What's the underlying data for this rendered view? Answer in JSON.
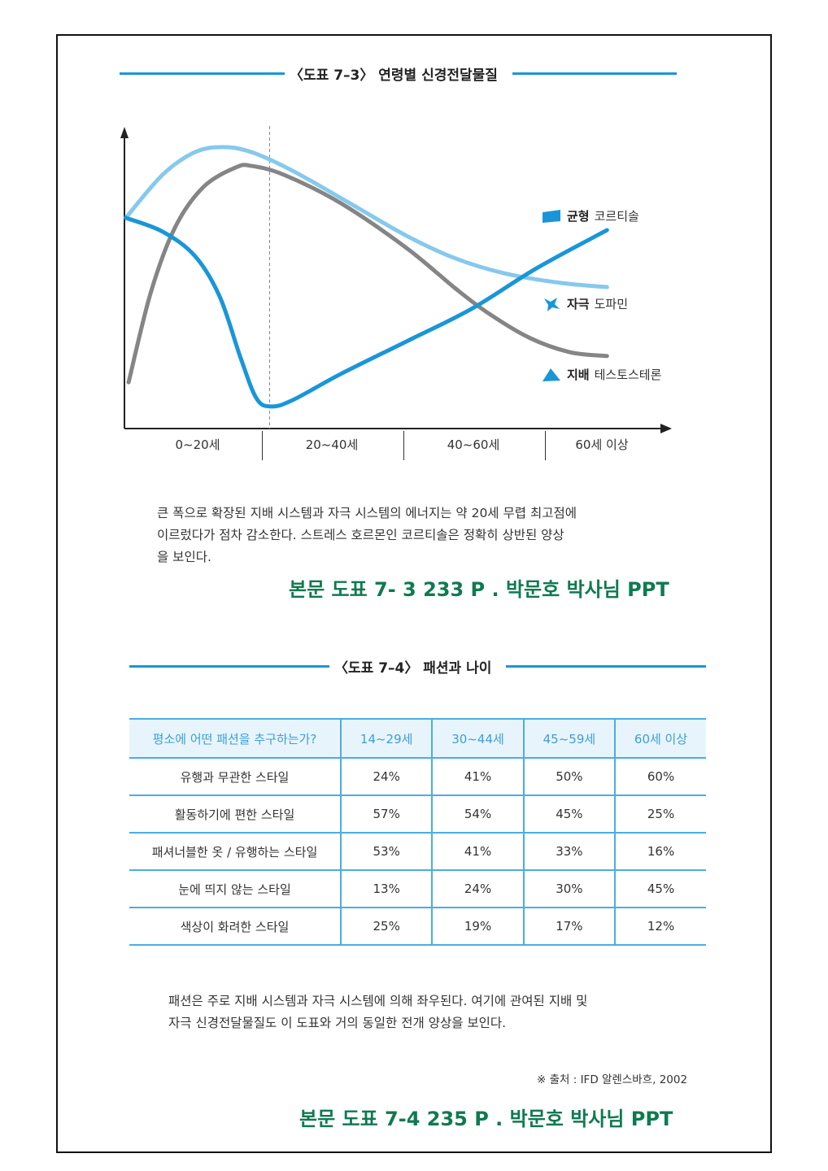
{
  "figure1": {
    "title": "〈도표 7–3〉 연령별 신경전달물질",
    "paragraph_lines": [
      "큰 폭으로 확장된 지배 시스템과 자극 시스템의 에너지는 약 20세 무렵 최고점에",
      "이르렀다가 점차 감소한다. 스트레스 호르몬인 코르티솔은 정확히 상반된 양상",
      "을 보인다."
    ],
    "note": "본문 도표 7- 3  233 P  . 박문호 박사님 PPT"
  },
  "chart_data": {
    "type": "line",
    "title": "〈도표 7–3〉 연령별 신경전달물질",
    "xlabel": "",
    "ylabel": "",
    "categories": [
      "0~20세",
      "20~40세",
      "40~60세",
      "60세 이상"
    ],
    "x_units": "age (years, approx.)",
    "xlim": [
      0,
      78
    ],
    "ylim": [
      0,
      100
    ],
    "marker_line_age": 21,
    "legend_position": "right",
    "legend": [
      {
        "bold": "균형",
        "label": "코르티솔",
        "icon": "square-icon"
      },
      {
        "bold": "자극",
        "label": "도파민",
        "icon": "cross-icon"
      },
      {
        "bold": "지배",
        "label": "테스토스테론",
        "icon": "triangle-icon"
      }
    ],
    "series": [
      {
        "name": "코르티솔",
        "color": "#1a96d8",
        "points": [
          [
            0.2,
            70.6
          ],
          [
            5.5,
            66
          ],
          [
            10.2,
            57.8
          ],
          [
            13.8,
            44.1
          ],
          [
            16.8,
            23.7
          ],
          [
            19.1,
            10.1
          ],
          [
            21.2,
            7.4
          ],
          [
            24.3,
            9.5
          ],
          [
            31.3,
            18.3
          ],
          [
            40.8,
            29.2
          ],
          [
            50.2,
            40.1
          ],
          [
            59.6,
            53.7
          ],
          [
            69.8,
            66.5
          ]
        ]
      },
      {
        "name": "도파민",
        "color": "#86c9ec",
        "points": [
          [
            0.2,
            70.6
          ],
          [
            5.5,
            85
          ],
          [
            10.2,
            92.6
          ],
          [
            14.3,
            94.3
          ],
          [
            18.4,
            92.6
          ],
          [
            24.3,
            86.4
          ],
          [
            32.6,
            75.5
          ],
          [
            40.8,
            64.6
          ],
          [
            47.9,
            57
          ],
          [
            55,
            52
          ],
          [
            63.1,
            48.8
          ],
          [
            69.8,
            47.4
          ]
        ]
      },
      {
        "name": "테스토스테론",
        "color": "#858585",
        "points": [
          [
            0.6,
            15.5
          ],
          [
            3.8,
            45.5
          ],
          [
            7.3,
            67.3
          ],
          [
            11.4,
            80.9
          ],
          [
            16.1,
            87.5
          ],
          [
            18.4,
            88
          ],
          [
            23.1,
            85
          ],
          [
            31.3,
            75.5
          ],
          [
            40.8,
            60.5
          ],
          [
            47.9,
            46.9
          ],
          [
            52.6,
            38.7
          ],
          [
            58.5,
            30.5
          ],
          [
            64.4,
            25.6
          ],
          [
            69.8,
            24.3
          ]
        ]
      }
    ]
  },
  "figure2": {
    "title": "〈도표 7–4〉 패션과 나이",
    "table": {
      "headers": [
        "평소에 어떤 패션을 추구하는가?",
        "14~29세",
        "30~44세",
        "45~59세",
        "60세 이상"
      ],
      "rows": [
        [
          "유행과 무관한 스타일",
          "24%",
          "41%",
          "50%",
          "60%"
        ],
        [
          "활동하기에 편한 스타일",
          "57%",
          "54%",
          "45%",
          "25%"
        ],
        [
          "패셔너블한 옷 / 유행하는 스타일",
          "53%",
          "41%",
          "33%",
          "16%"
        ],
        [
          "눈에 띄지 않는 스타일",
          "13%",
          "24%",
          "30%",
          "45%"
        ],
        [
          "색상이 화려한 스타일",
          "25%",
          "19%",
          "17%",
          "12%"
        ]
      ]
    },
    "paragraph_lines": [
      "패션은 주로 지배 시스템과 자극 시스템에 의해 좌우된다. 여기에 관여된 지배 및",
      "자극 신경전달물질도 이 도표와 거의 동일한 전개 양상을 보인다."
    ],
    "source": "※ 출처 : IFD 알렌스바흐, 2002",
    "note": "본문 도표 7-4  235 P  . 박문호 박사님 PPT"
  }
}
